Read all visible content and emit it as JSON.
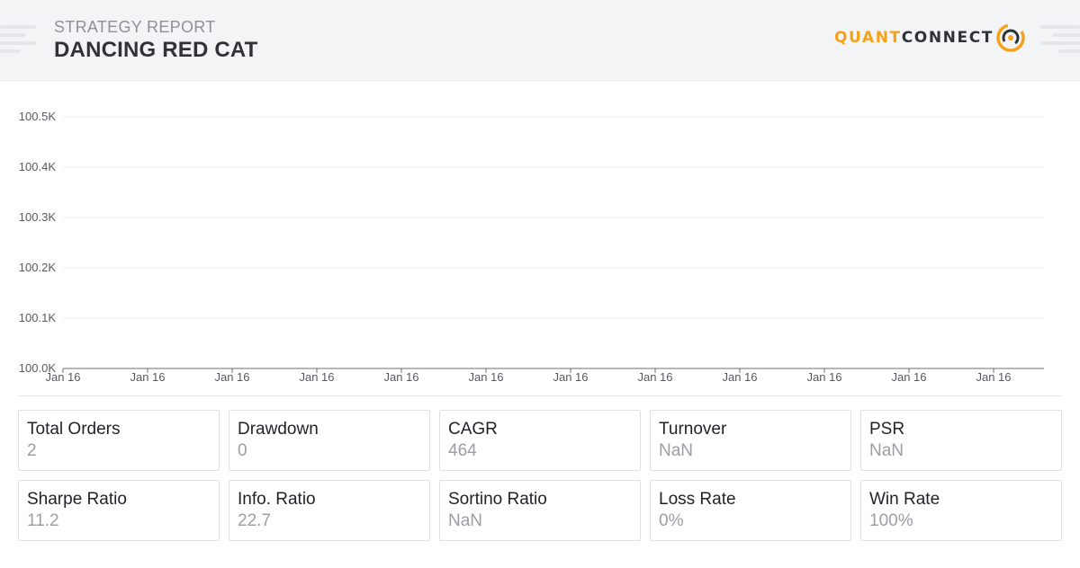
{
  "header": {
    "subtitle": "STRATEGY REPORT",
    "title": "DANCING RED CAT",
    "logo": {
      "part1": "QUANT",
      "part2": "CONNECT",
      "icon": "quantconnect-logo-icon",
      "accent": "#f5a21b"
    }
  },
  "chart_data": {
    "type": "line",
    "title": "",
    "xlabel": "",
    "ylabel": "",
    "y_tick_labels": [
      "100.5K",
      "100.4K",
      "100.3K",
      "100.2K",
      "100.1K",
      "100.0K"
    ],
    "y_ticks": [
      100500,
      100400,
      100300,
      100200,
      100100,
      100000
    ],
    "x_tick_labels": [
      "Jan 16",
      "Jan 16",
      "Jan 16",
      "Jan 16",
      "Jan 16",
      "Jan 16",
      "Jan 16",
      "Jan 16",
      "Jan 16",
      "Jan 16",
      "Jan 16",
      "Jan 16"
    ],
    "ylim": [
      100000,
      100500
    ],
    "grid": true,
    "series": []
  },
  "stats": [
    {
      "label": "Total Orders",
      "value": "2"
    },
    {
      "label": "Drawdown",
      "value": "0"
    },
    {
      "label": "CAGR",
      "value": "464"
    },
    {
      "label": "Turnover",
      "value": "NaN"
    },
    {
      "label": "PSR",
      "value": "NaN"
    },
    {
      "label": "Sharpe Ratio",
      "value": "11.2"
    },
    {
      "label": "Info. Ratio",
      "value": "22.7"
    },
    {
      "label": "Sortino Ratio",
      "value": "NaN"
    },
    {
      "label": "Loss Rate",
      "value": "0%"
    },
    {
      "label": "Win Rate",
      "value": "100%"
    }
  ]
}
